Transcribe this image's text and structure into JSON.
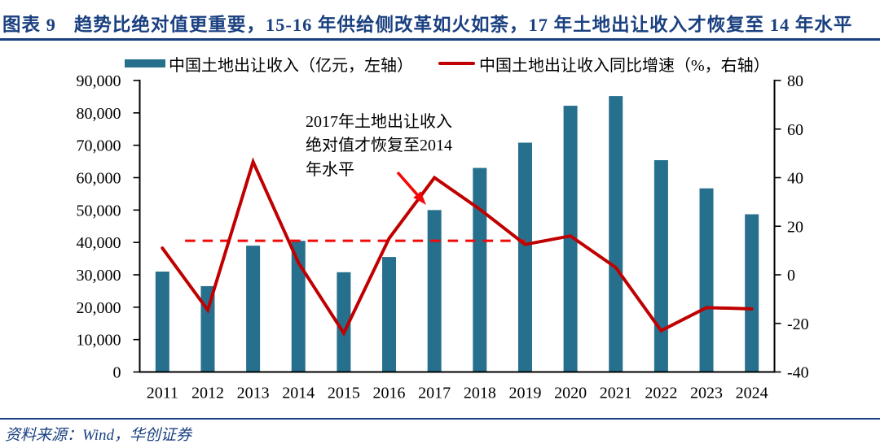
{
  "header": {
    "figure_label": "图表 9",
    "title": "趋势比绝对值更重要，15-16 年供给侧改革如火如荼，17 年土地出让收入才恢复至 14 年水平"
  },
  "footer": {
    "source": "资料来源：Wind，华创证券"
  },
  "colors": {
    "navy": "#1A4080",
    "bar_blue": "#26708E",
    "line_dark_red": "#C00000",
    "annotation_red": "#F40808",
    "axis_black": "#000000"
  },
  "chart_data": {
    "type": "bar",
    "subtype": "bar+line combo, dual axis",
    "categories": [
      "2011",
      "2012",
      "2013",
      "2014",
      "2015",
      "2016",
      "2017",
      "2018",
      "2019",
      "2020",
      "2021",
      "2022",
      "2023",
      "2024"
    ],
    "series": [
      {
        "name": "中国土地出让收入（亿元，左轴）",
        "type": "bar",
        "axis": "left",
        "color": "#26708E",
        "values": [
          31000,
          26500,
          39000,
          40500,
          30800,
          35500,
          50000,
          63000,
          70800,
          82200,
          85200,
          65400,
          56700,
          48700
        ]
      },
      {
        "name": "中国土地出让收入同比增速（%，右轴）",
        "type": "line",
        "axis": "right",
        "color": "#C00000",
        "values": [
          11,
          -14.5,
          46.5,
          5,
          -24,
          15,
          40,
          27,
          12.5,
          16,
          3,
          -23,
          -13.5,
          -14
        ]
      }
    ],
    "left_axis": {
      "min": 0,
      "max": 90000,
      "step": 10000,
      "tick_labels": [
        "90,000",
        "80,000",
        "70,000",
        "60,000",
        "50,000",
        "40,000",
        "30,000",
        "20,000",
        "10,000",
        "0"
      ]
    },
    "right_axis": {
      "min": -40,
      "max": 80,
      "step": 20,
      "tick_labels": [
        "80",
        "60",
        "40",
        "20",
        "0",
        "-20",
        "-40"
      ]
    },
    "grid": "off",
    "legend_position": "top",
    "annotations": {
      "text_lines": [
        "2017年土地出让收入",
        "绝对值才恢复至2014",
        "年水平"
      ],
      "dashed_reference_line": {
        "right_axis_value": 14,
        "left_axis_value": 40500,
        "from_category_x": 2011.5,
        "to_category_x": 2019,
        "color": "#F40808",
        "style": "dashed"
      },
      "arrow": {
        "color": "#F40808",
        "points_to": "2017 growth peak on line"
      }
    }
  }
}
